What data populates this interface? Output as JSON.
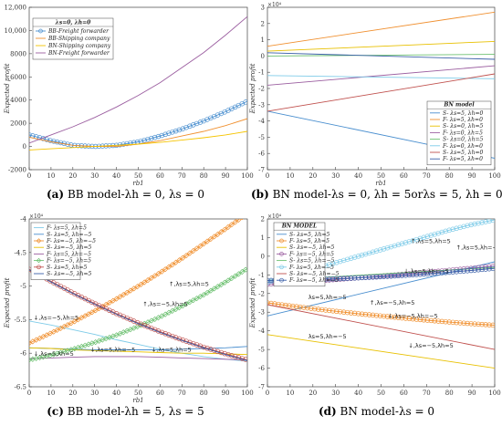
{
  "captions": [
    {
      "letter": "(a)",
      "text": "BB model-λh = 0, λs = 0"
    },
    {
      "letter": "(b)",
      "text": "BN model-λs = 0, λh = 5orλs = 5, λh = 0"
    },
    {
      "letter": "(c)",
      "text": "BB model-λh = 5, λs = 5"
    },
    {
      "letter": "(d)",
      "text": "BN model-λs = 0"
    }
  ],
  "chart_data": [
    {
      "type": "line",
      "xlabel": "rb1",
      "ylabel": "Expected profit",
      "exponent": "",
      "xlim": [
        0,
        100
      ],
      "ylim": [
        -2000,
        12000
      ],
      "xticks": [
        0,
        10,
        20,
        30,
        40,
        50,
        60,
        70,
        80,
        90,
        100
      ],
      "yticks": [
        -2000,
        0,
        2000,
        4000,
        6000,
        8000,
        10000,
        12000
      ],
      "ytick_labels": [
        "-2000",
        "0",
        "2000",
        "4000",
        "6000",
        "8000",
        "10,000",
        "12,000"
      ],
      "legend_title": "λs=0, λh=0",
      "legend_position": "top-left",
      "grid": false,
      "series": [
        {
          "name": "BB-Freight forwarder",
          "color": "#4a8fcf",
          "marker": "circle",
          "x": [
            0,
            10,
            20,
            30,
            40,
            50,
            60,
            70,
            80,
            90,
            100
          ],
          "y": [
            1000,
            500,
            100,
            0,
            100,
            400,
            900,
            1500,
            2200,
            3000,
            3900
          ]
        },
        {
          "name": "BB-Shipping company",
          "color": "#f09030",
          "marker": "none",
          "x": [
            0,
            10,
            20,
            30,
            40,
            50,
            60,
            70,
            80,
            90,
            100
          ],
          "y": [
            800,
            400,
            100,
            0,
            0,
            200,
            500,
            900,
            1300,
            1800,
            2400
          ]
        },
        {
          "name": "BN-Shipping company",
          "color": "#f5c400",
          "marker": "none",
          "x": [
            0,
            10,
            20,
            30,
            40,
            50,
            60,
            70,
            80,
            90,
            100
          ],
          "y": [
            -300,
            -200,
            -100,
            0,
            100,
            200,
            350,
            550,
            750,
            1000,
            1300
          ]
        },
        {
          "name": "BN-Freight forwarder",
          "color": "#9b5ea0",
          "marker": "none",
          "x": [
            0,
            10,
            20,
            30,
            40,
            50,
            60,
            70,
            80,
            90,
            100
          ],
          "y": [
            300,
            1000,
            1700,
            2500,
            3400,
            4400,
            5500,
            6800,
            8100,
            9600,
            11200
          ]
        }
      ],
      "annotations": []
    },
    {
      "type": "line",
      "xlabel": "rb1",
      "ylabel": "Expected profit",
      "exponent": "×10⁴",
      "xlim": [
        0,
        100
      ],
      "ylim": [
        -7,
        3
      ],
      "xticks": [
        0,
        10,
        20,
        30,
        40,
        50,
        60,
        70,
        80,
        90,
        100
      ],
      "yticks": [
        -7,
        -6,
        -5,
        -4,
        -3,
        -2,
        -1,
        0,
        1,
        2,
        3
      ],
      "ytick_labels": [
        "-7",
        "-6",
        "-5",
        "-4",
        "-3",
        "-2",
        "-1",
        "0",
        "1",
        "2",
        "3"
      ],
      "legend_title": "BN model",
      "legend_position": "bottom-right",
      "grid": false,
      "series": [
        {
          "name": "S- λs=5, λh=0",
          "color": "#4a8fcf",
          "marker": "none",
          "x": [
            0,
            100
          ],
          "y": [
            -3.4,
            -6.3
          ]
        },
        {
          "name": "F- λs=5, λh=0",
          "color": "#f09030",
          "marker": "none",
          "x": [
            0,
            100
          ],
          "y": [
            0.6,
            2.7
          ]
        },
        {
          "name": "S- λs=0, λh=5",
          "color": "#e8c000",
          "marker": "none",
          "x": [
            0,
            100
          ],
          "y": [
            0.3,
            0.9
          ]
        },
        {
          "name": "F- λs=0, λh=5",
          "color": "#9b5ea0",
          "marker": "none",
          "x": [
            0,
            100
          ],
          "y": [
            -1.8,
            -0.6
          ]
        },
        {
          "name": "S- λs=0, λh=5",
          "color": "#6cc070",
          "marker": "none",
          "x": [
            0,
            100
          ],
          "y": [
            0,
            0.1
          ]
        },
        {
          "name": "F- λs=0, λh=0",
          "color": "#7ecbe8",
          "marker": "none",
          "x": [
            0,
            100
          ],
          "y": [
            -1.2,
            -1.4
          ]
        },
        {
          "name": "S- λs=5, λh=0",
          "color": "#c0504d",
          "marker": "none",
          "x": [
            0,
            100
          ],
          "y": [
            -3.4,
            -1.1
          ]
        },
        {
          "name": "F- λs=5, λh=0",
          "color": "#3a5fa8",
          "marker": "none",
          "x": [
            0,
            100
          ],
          "y": [
            0.2,
            -0.2
          ]
        }
      ],
      "annotations": []
    },
    {
      "type": "line",
      "xlabel": "rb1",
      "ylabel": "Expected profit",
      "exponent": "×10⁴",
      "xlim": [
        0,
        100
      ],
      "ylim": [
        -6.5,
        -4
      ],
      "xticks": [
        0,
        10,
        20,
        30,
        40,
        50,
        60,
        70,
        80,
        90,
        100
      ],
      "yticks": [
        -6.5,
        -6,
        -5.5,
        -5,
        -4.5,
        -4
      ],
      "ytick_labels": [
        "-6.5",
        "-6",
        "-5.5",
        "-5",
        "-4.5",
        "-4"
      ],
      "legend_title": "",
      "legend_position": "top-left",
      "grid": false,
      "series": [
        {
          "name": "F- λs=5, λh=5",
          "color": "#7ecbe8",
          "marker": "none",
          "x": [
            0,
            10,
            20,
            30,
            40,
            50,
            60,
            70,
            80,
            90,
            100
          ],
          "y": [
            -5.52,
            -5.58,
            -5.65,
            -5.72,
            -5.8,
            -5.87,
            -5.94,
            -6.0,
            -6.05,
            -6.09,
            -6.12
          ]
        },
        {
          "name": "S- λs=5, λh=−5",
          "color": "#4a8fcf",
          "marker": "none",
          "x": [
            0,
            10,
            20,
            30,
            40,
            50,
            60,
            70,
            80,
            90,
            100
          ],
          "y": [
            -5.92,
            -5.93,
            -5.94,
            -5.95,
            -5.95,
            -5.95,
            -5.95,
            -5.94,
            -5.93,
            -5.92,
            -5.9
          ]
        },
        {
          "name": "F- λs=−5, λh=−5",
          "color": "#f09030",
          "marker": "diamond",
          "x": [
            0,
            10,
            20,
            30,
            40,
            50,
            60,
            70,
            80,
            90,
            100
          ],
          "y": [
            -5.85,
            -5.7,
            -5.54,
            -5.37,
            -5.19,
            -5.0,
            -4.8,
            -4.59,
            -4.37,
            -4.15,
            -3.92
          ]
        },
        {
          "name": "S- λs=−5, λh=5",
          "color": "#e8c000",
          "marker": "none",
          "x": [
            0,
            10,
            20,
            30,
            40,
            50,
            60,
            70,
            80,
            90,
            100
          ],
          "y": [
            -5.92,
            -5.93,
            -5.95,
            -5.96,
            -5.97,
            -5.98,
            -5.99,
            -6.0,
            -6.0,
            -6.01,
            -6.02
          ]
        },
        {
          "name": "F- λs=5, λh=−5",
          "color": "#9b5ea0",
          "marker": "none",
          "x": [
            0,
            10,
            20,
            30,
            40,
            50,
            60,
            70,
            80,
            90,
            100
          ],
          "y": [
            -6.08,
            -6.07,
            -6.06,
            -6.05,
            -6.05,
            -6.05,
            -6.06,
            -6.07,
            -6.08,
            -6.09,
            -6.1
          ]
        },
        {
          "name": "F- λs=−5, λh=5",
          "color": "#6cc070",
          "marker": "diamond",
          "x": [
            0,
            10,
            20,
            30,
            40,
            50,
            60,
            70,
            80,
            90,
            100
          ],
          "y": [
            -6.1,
            -6.03,
            -5.94,
            -5.84,
            -5.73,
            -5.6,
            -5.46,
            -5.3,
            -5.13,
            -4.94,
            -4.74
          ]
        },
        {
          "name": "S- λs=5, λh=5",
          "color": "#c0504d",
          "marker": "circle",
          "x": [
            0,
            10,
            20,
            30,
            40,
            50,
            60,
            70,
            80,
            90,
            100
          ],
          "y": [
            -4.75,
            -4.93,
            -5.1,
            -5.26,
            -5.41,
            -5.55,
            -5.68,
            -5.8,
            -5.91,
            -6.01,
            -6.1
          ]
        },
        {
          "name": "S- λs=−5, λh=5",
          "color": "#3a5fa8",
          "marker": "none",
          "x": [
            0,
            10,
            20,
            30,
            40,
            50,
            60,
            70,
            80,
            90,
            100
          ],
          "y": [
            -4.76,
            -4.94,
            -5.11,
            -5.27,
            -5.42,
            -5.56,
            -5.69,
            -5.81,
            -5.92,
            -6.02,
            -6.11
          ]
        }
      ],
      "annotations": [
        {
          "text": "↑,λs=5,λh=5",
          "x": 64,
          "y": -5.0
        },
        {
          "text": "↓,λs=−5,λh=5",
          "x": 2,
          "y": -5.5
        },
        {
          "text": "↑,λs=−5,λh=5",
          "x": 52,
          "y": -5.3
        },
        {
          "text": "↓,λs=5,λh=5",
          "x": 2,
          "y": -6.04
        },
        {
          "text": "↓,λs=5,λh=−5",
          "x": 28,
          "y": -5.98
        },
        {
          "text": "↓,λs=5,λh=5",
          "x": 56,
          "y": -5.98
        }
      ]
    },
    {
      "type": "line",
      "xlabel": "",
      "ylabel": "Expected profit",
      "exponent": "×10⁴",
      "xlim": [
        0,
        100
      ],
      "ylim": [
        -7,
        2
      ],
      "xticks": [
        0,
        10,
        20,
        30,
        40,
        50,
        60,
        70,
        80,
        90,
        100
      ],
      "yticks": [
        -7,
        -6,
        -5,
        -4,
        -3,
        -2,
        -1,
        0,
        1,
        2
      ],
      "ytick_labels": [
        "-7",
        "-6",
        "-5",
        "-4",
        "-3",
        "-2",
        "-1",
        "0",
        "1",
        "2"
      ],
      "legend_title": "BN MODEL",
      "legend_position": "top-left",
      "grid": false,
      "series": [
        {
          "name": "S- λs=5, λh=5",
          "color": "#4a8fcf",
          "marker": "none",
          "x": [
            0,
            100
          ],
          "y": [
            -3.2,
            -0.3
          ]
        },
        {
          "name": "F- λs=5, λh=5",
          "color": "#f09030",
          "marker": "circle",
          "x": [
            0,
            10,
            20,
            30,
            40,
            50,
            60,
            70,
            80,
            90,
            100
          ],
          "y": [
            -2.5,
            -2.66,
            -2.81,
            -2.95,
            -3.08,
            -3.2,
            -3.32,
            -3.43,
            -3.53,
            -3.62,
            -3.7
          ]
        },
        {
          "name": "S- λs=−5, λh=5",
          "color": "#e8c000",
          "marker": "none",
          "x": [
            0,
            100
          ],
          "y": [
            -4.2,
            -6.0
          ]
        },
        {
          "name": "F- λs=−5, λh=5",
          "color": "#9b5ea0",
          "marker": "circle",
          "x": [
            0,
            10,
            20,
            30,
            40,
            50,
            60,
            70,
            80,
            90,
            100
          ],
          "y": [
            -1.5,
            -1.42,
            -1.34,
            -1.25,
            -1.16,
            -1.06,
            -0.96,
            -0.86,
            -0.75,
            -0.64,
            -0.53
          ]
        },
        {
          "name": "S- λs=5, λh=−5",
          "color": "#6cc070",
          "marker": "none",
          "x": [
            0,
            100
          ],
          "y": [
            -1.3,
            -0.6
          ]
        },
        {
          "name": "F- λs=5, λh=−5",
          "color": "#7ecbe8",
          "marker": "circle",
          "x": [
            0,
            10,
            20,
            30,
            40,
            50,
            60,
            70,
            80,
            90,
            100
          ],
          "y": [
            -1.4,
            -1.05,
            -0.7,
            -0.35,
            0.0,
            0.35,
            0.7,
            1.05,
            1.4,
            1.7,
            1.95
          ]
        },
        {
          "name": "S- λs=−5, λh=−5",
          "color": "#c0504d",
          "marker": "none",
          "x": [
            0,
            100
          ],
          "y": [
            -2.6,
            -5.0
          ]
        },
        {
          "name": "F- λs=−5, λh=−5",
          "color": "#3a5fa8",
          "marker": "circle",
          "x": [
            0,
            10,
            20,
            30,
            40,
            50,
            60,
            70,
            80,
            90,
            100
          ],
          "y": [
            -1.3,
            -1.28,
            -1.25,
            -1.21,
            -1.16,
            -1.1,
            -1.03,
            -0.95,
            -0.86,
            -0.76,
            -0.65
          ]
        }
      ],
      "annotations": [
        {
          "text": "↑,λs=5,λh=5",
          "x": 63,
          "y": 0.7
        },
        {
          "text": "↑,λs=5,λh=−5",
          "x": 83,
          "y": 0.35
        },
        {
          "text": "↓,λs=5,λh=−5",
          "x": 60,
          "y": -0.9
        },
        {
          "text": "λs=5,λh=−5",
          "x": 18,
          "y": -2.3
        },
        {
          "text": "↑,λs=−5,λh=5",
          "x": 45,
          "y": -2.6
        },
        {
          "text": "↓,λs=−5,λh=−5",
          "x": 53,
          "y": -3.3
        },
        {
          "text": "λs=5,λh=−5",
          "x": 18,
          "y": -4.4
        },
        {
          "text": "↓,λs=−5,λh=5",
          "x": 62,
          "y": -4.9
        }
      ]
    }
  ]
}
